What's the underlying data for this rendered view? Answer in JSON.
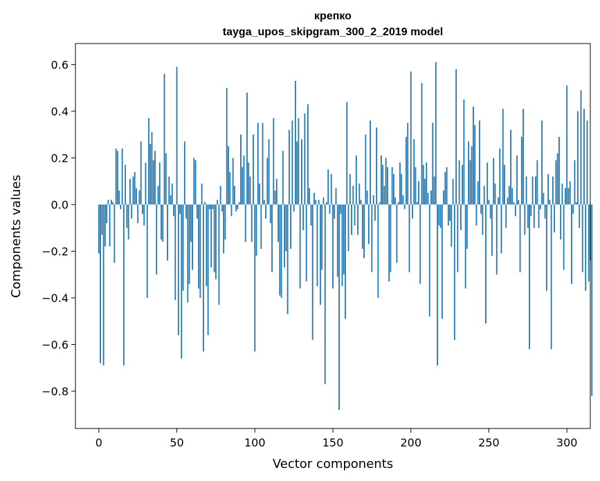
{
  "chart_data": {
    "type": "bar",
    "title": "крепко",
    "subtitle": "tayga_upos_skipgram_300_2_2019 model",
    "xlabel": "Vector components",
    "ylabel": "Components values",
    "xlim": [
      -15,
      315
    ],
    "ylim": [
      -0.96,
      0.69
    ],
    "x_ticks": [
      0,
      50,
      100,
      150,
      200,
      250,
      300
    ],
    "y_ticks": [
      -0.8,
      -0.6,
      -0.4,
      -0.2,
      0.0,
      0.2,
      0.4,
      0.6
    ],
    "y_tick_labels": [
      "−0.8",
      "−0.6",
      "−0.4",
      "−0.2",
      "0.0",
      "0.2",
      "0.4",
      "0.6"
    ],
    "bar_color": "#1f77b4",
    "values": [
      -0.21,
      -0.68,
      -0.13,
      -0.69,
      -0.18,
      -0.08,
      0.02,
      -0.18,
      0.02,
      0.01,
      -0.25,
      0.24,
      0.23,
      0.06,
      -0.02,
      0.24,
      -0.69,
      0.17,
      -0.1,
      -0.15,
      0.11,
      -0.06,
      0.12,
      0.14,
      0.07,
      -0.08,
      0.06,
      0.27,
      -0.04,
      -0.09,
      0.18,
      -0.4,
      0.37,
      0.26,
      0.31,
      0.19,
      0.23,
      -0.3,
      0.08,
      0.18,
      -0.15,
      -0.16,
      0.56,
      0.22,
      -0.24,
      0.12,
      0.04,
      0.09,
      -0.05,
      -0.41,
      0.59,
      -0.56,
      -0.04,
      -0.66,
      -0.37,
      0.27,
      -0.06,
      -0.42,
      -0.34,
      -0.16,
      -0.28,
      0.2,
      0.19,
      -0.06,
      -0.36,
      -0.4,
      0.09,
      -0.63,
      0.01,
      -0.35,
      -0.56,
      -0.02,
      -0.27,
      -0.02,
      -0.29,
      -0.32,
      0.02,
      -0.43,
      0.08,
      -0.03,
      -0.21,
      -0.15,
      0.5,
      0.25,
      0.14,
      -0.05,
      0.2,
      0.08,
      -0.03,
      -0.02,
      0.01,
      0.3,
      0.16,
      0.21,
      -0.16,
      0.48,
      0.18,
      0.12,
      -0.16,
      0.3,
      -0.63,
      -0.22,
      0.35,
      0.09,
      -0.19,
      0.35,
      0.02,
      -0.06,
      0.2,
      0.28,
      -0.08,
      -0.29,
      0.37,
      0.06,
      0.11,
      -0.16,
      -0.39,
      -0.4,
      0.23,
      -0.27,
      -0.2,
      -0.47,
      0.32,
      -0.19,
      0.36,
      -0.03,
      0.53,
      0.27,
      0.37,
      -0.36,
      0.28,
      -0.11,
      0.39,
      -0.33,
      0.43,
      0.07,
      -0.09,
      -0.58,
      0.05,
      0.02,
      -0.35,
      0.02,
      -0.43,
      -0.28,
      0.03,
      -0.77,
      0.01,
      0.15,
      -0.04,
      0.13,
      -0.36,
      -0.06,
      0.07,
      -0.31,
      -0.88,
      -0.04,
      -0.35,
      -0.3,
      -0.49,
      0.44,
      -0.2,
      0.13,
      -0.13,
      0.08,
      -0.09,
      0.21,
      -0.13,
      0.09,
      0.02,
      -0.19,
      -0.23,
      0.3,
      0.06,
      -0.17,
      0.36,
      -0.29,
      0.04,
      -0.07,
      0.33,
      -0.4,
      0.01,
      0.21,
      0.17,
      0.08,
      0.2,
      0.16,
      -0.33,
      -0.29,
      0.16,
      0.13,
      0.03,
      -0.25,
      0.01,
      0.18,
      0.13,
      0.04,
      -0.02,
      0.29,
      0.35,
      -0.29,
      0.57,
      -0.06,
      0.28,
      0.16,
      0.01,
      0.1,
      -0.34,
      0.52,
      0.17,
      0.11,
      0.18,
      0.05,
      -0.48,
      0.06,
      0.35,
      0.12,
      0.61,
      -0.69,
      -0.09,
      -0.1,
      -0.49,
      0.06,
      0.14,
      0.16,
      -0.09,
      -0.07,
      -0.18,
      0.11,
      -0.58,
      0.58,
      -0.29,
      0.19,
      -0.11,
      0.17,
      0.45,
      -0.36,
      -0.19,
      0.27,
      0.19,
      0.25,
      0.42,
      0.34,
      -0.09,
      0.1,
      0.36,
      -0.04,
      -0.13,
      0.08,
      -0.51,
      0.18,
      0.02,
      -0.06,
      -0.22,
      0.2,
      0.09,
      -0.3,
      0.03,
      0.24,
      -0.21,
      0.41,
      0.17,
      -0.1,
      0.03,
      0.08,
      0.32,
      0.07,
      0.01,
      -0.05,
      0.21,
      0.02,
      -0.29,
      0.29,
      0.41,
      -0.13,
      0.12,
      -0.1,
      -0.62,
      -0.05,
      0.12,
      -0.1,
      0.12,
      0.19,
      -0.1,
      -0.02,
      0.36,
      0.05,
      -0.06,
      -0.37,
      0.13,
      0.02,
      -0.62,
      0.12,
      -0.12,
      0.19,
      0.22,
      0.29,
      -0.15,
      0.09,
      -0.28,
      0.07,
      0.51,
      0.07,
      0.1,
      -0.34,
      -0.04,
      0.19,
      0.01,
      0.4,
      -0.1,
      0.49,
      -0.29,
      0.41,
      -0.37,
      0.36,
      -0.33,
      -0.24,
      -0.82
    ]
  }
}
